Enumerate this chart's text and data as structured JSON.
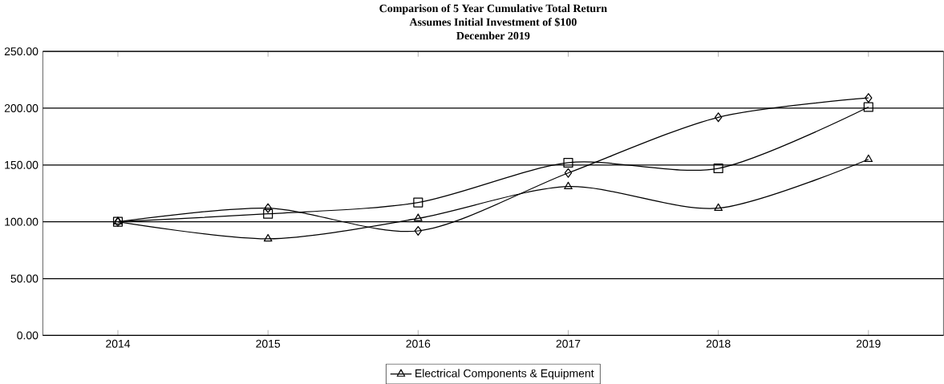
{
  "chart_data": {
    "type": "line",
    "title": "Comparison of 5 Year Cumulative Total Return\nAssumes Initial Investment of $100\nDecember 2019",
    "categories": [
      "2014",
      "2015",
      "2016",
      "2017",
      "2018",
      "2019"
    ],
    "series": [
      {
        "color": "#000000",
        "marker": "diamond",
        "values": [
          100,
          112,
          92,
          143,
          192,
          209
        ]
      },
      {
        "color": "#000000",
        "marker": "square",
        "values": [
          100,
          107,
          117,
          152,
          147,
          201
        ]
      },
      {
        "name": "Electrical Components & Equipment",
        "color": "#000000",
        "marker": "triangle",
        "values": [
          100,
          85,
          103,
          131,
          112,
          155
        ]
      }
    ],
    "ylim": [
      0,
      250
    ],
    "yticks": [
      {
        "value": 0,
        "label": "0.00"
      },
      {
        "value": 50,
        "label": "50.00"
      },
      {
        "value": 100,
        "label": "100.00"
      },
      {
        "value": 150,
        "label": "150.00"
      },
      {
        "value": 200,
        "label": "200.00"
      },
      {
        "value": 250,
        "label": "250.00"
      }
    ],
    "grid": "y",
    "legend": "bottom",
    "line_style": "solid"
  }
}
